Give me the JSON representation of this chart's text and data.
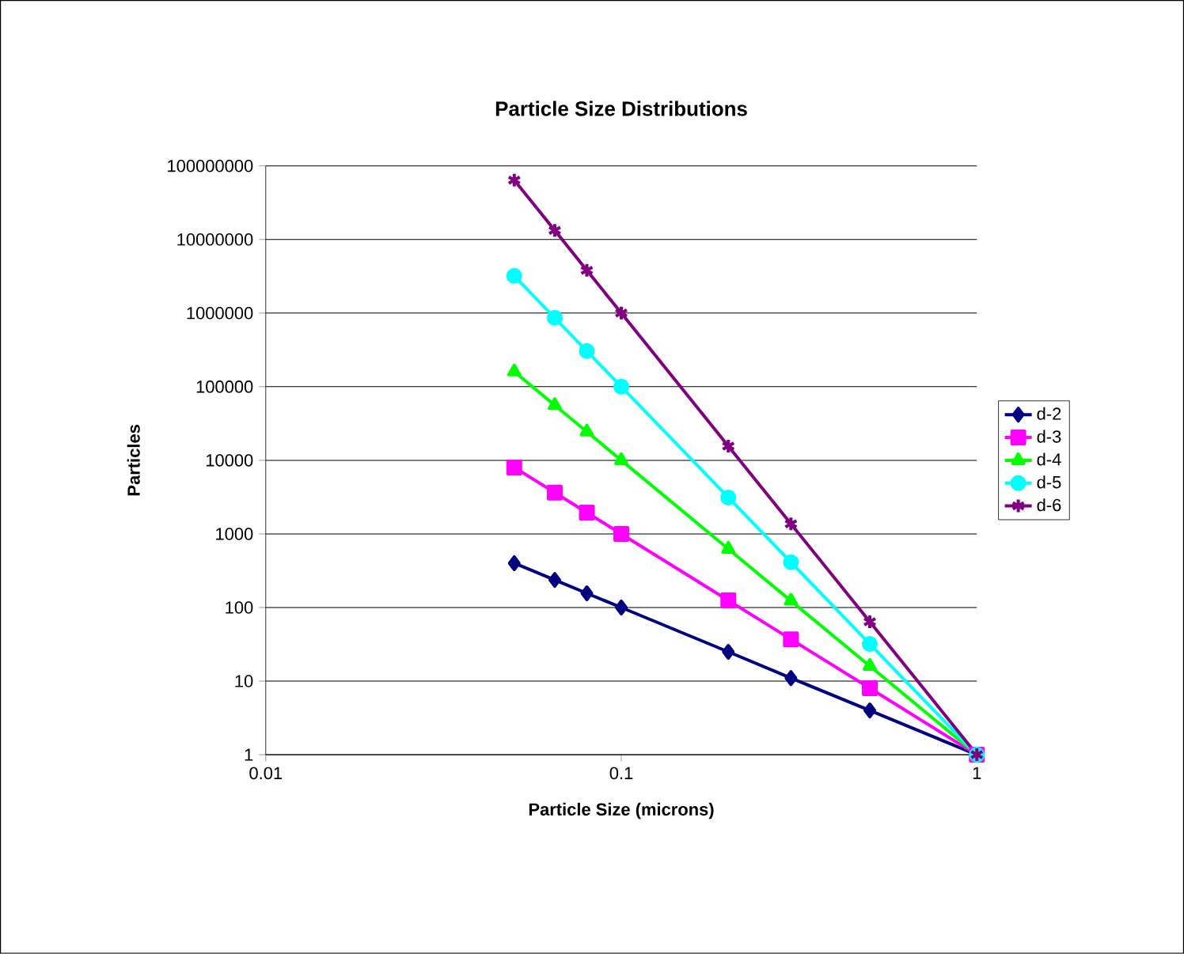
{
  "chart_data": {
    "type": "line",
    "title": "Particle Size Distributions",
    "xlabel": "Particle Size (microns)",
    "ylabel": "Particles",
    "log": "xy",
    "grid": "y",
    "legend": "right",
    "xlim": [
      0.01,
      1
    ],
    "ylim": [
      1,
      100000000
    ],
    "xticks": [
      0.01,
      0.1,
      1
    ],
    "yticks": [
      1,
      10,
      100,
      1000,
      10000,
      100000,
      1000000,
      10000000,
      100000000
    ],
    "x": [
      0.05,
      0.065,
      0.08,
      0.1,
      0.2,
      0.3,
      0.5,
      1
    ],
    "series": [
      {
        "name": "d-2",
        "color": "#000080",
        "marker": "diamond",
        "values": [
          400,
          237,
          156,
          100,
          25,
          11,
          4,
          1
        ]
      },
      {
        "name": "d-3",
        "color": "#ff00ff",
        "marker": "square",
        "values": [
          8000,
          3640,
          1950,
          1000,
          125,
          37,
          8,
          1
        ]
      },
      {
        "name": "d-4",
        "color": "#00ff00",
        "marker": "triangle",
        "values": [
          160000,
          56000,
          24400,
          10000,
          625,
          123,
          16,
          1
        ]
      },
      {
        "name": "d-5",
        "color": "#00ffff",
        "marker": "circle",
        "values": [
          3200000,
          862000,
          305000,
          100000,
          3125,
          412,
          32,
          1
        ]
      },
      {
        "name": "d-6",
        "color": "#800080",
        "marker": "cross",
        "values": [
          64000000,
          13300000,
          3810000,
          1000000,
          15600,
          1370,
          64,
          1
        ]
      }
    ]
  }
}
